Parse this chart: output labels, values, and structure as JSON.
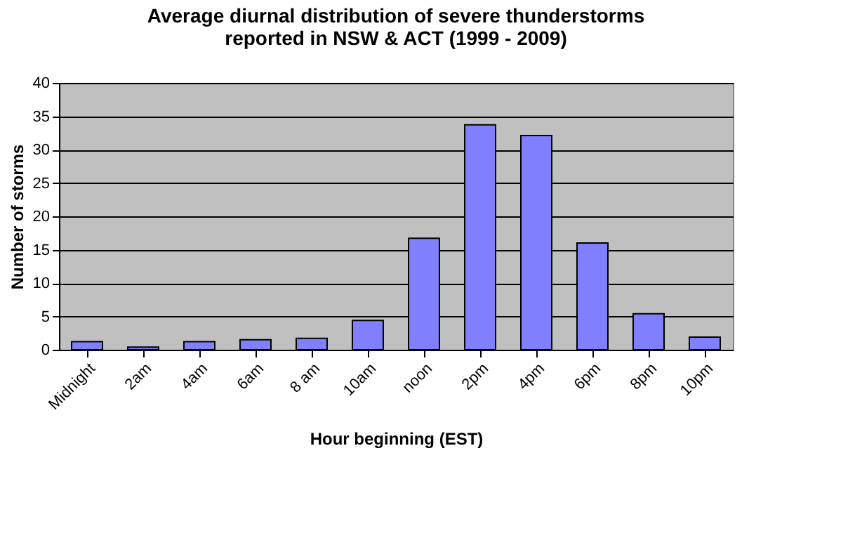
{
  "chart_data": {
    "type": "bar",
    "title": "Average diurnal distribution of severe thunderstorms\nreported in NSW & ACT (1999 - 2009)",
    "xlabel": "Hour beginning (EST)",
    "ylabel": "Number of storms",
    "categories": [
      "Midnight",
      "2am",
      "4am",
      "6am",
      "8 am",
      "10am",
      "noon",
      "2pm",
      "4pm",
      "6pm",
      "8pm",
      "10pm"
    ],
    "values": [
      1.2,
      0.4,
      1.2,
      1.5,
      1.7,
      4.4,
      16.7,
      33.7,
      32.1,
      16.0,
      5.4,
      1.9
    ],
    "color": "#8080ff",
    "ylim": [
      0,
      40
    ],
    "yticks": [
      0,
      5,
      10,
      15,
      20,
      25,
      30,
      35,
      40
    ],
    "grid": "y"
  }
}
